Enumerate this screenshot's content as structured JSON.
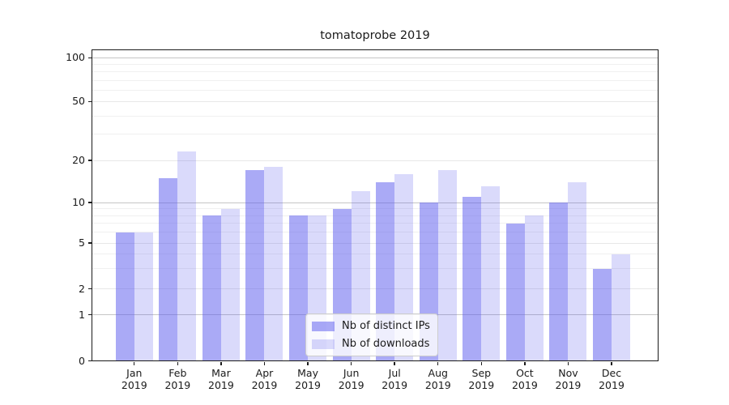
{
  "chart_data": {
    "type": "bar",
    "title": "tomatoprobe 2019",
    "categories": [
      "Jan 2019",
      "Feb 2019",
      "Mar 2019",
      "Apr 2019",
      "May 2019",
      "Jun 2019",
      "Jul 2019",
      "Aug 2019",
      "Sep 2019",
      "Oct 2019",
      "Nov 2019",
      "Dec 2019"
    ],
    "series": [
      {
        "name": "Nb of distinct IPs",
        "color": "rgba(85,85,238,0.5)",
        "values": [
          6,
          15,
          8,
          17,
          8,
          9,
          14,
          10,
          11,
          7,
          10,
          3
        ]
      },
      {
        "name": "Nb of downloads",
        "color": "rgba(85,85,238,0.22)",
        "values": [
          6,
          23,
          9,
          18,
          8,
          12,
          16,
          17,
          13,
          8,
          14,
          4
        ]
      }
    ],
    "yscale": "symlog",
    "ylim": [
      0,
      110
    ],
    "y_ticks": [
      0,
      1,
      2,
      5,
      10,
      20,
      50,
      100
    ],
    "y_decade_gridlines": [
      1,
      10,
      100
    ],
    "y_minor_gridlines": [
      3,
      4,
      6,
      7,
      8,
      9,
      30,
      40,
      60,
      70,
      80,
      90
    ],
    "grid": true,
    "legend_position": "lower center"
  },
  "colors": {
    "spine": "#1a1a1a",
    "gridline_decade": "#c6c6c6",
    "gridline_level": "#e7e7e7",
    "gridline_minor": "#f0f0f0",
    "text": "#1a1a1a",
    "legend_border": "#cccccc"
  }
}
